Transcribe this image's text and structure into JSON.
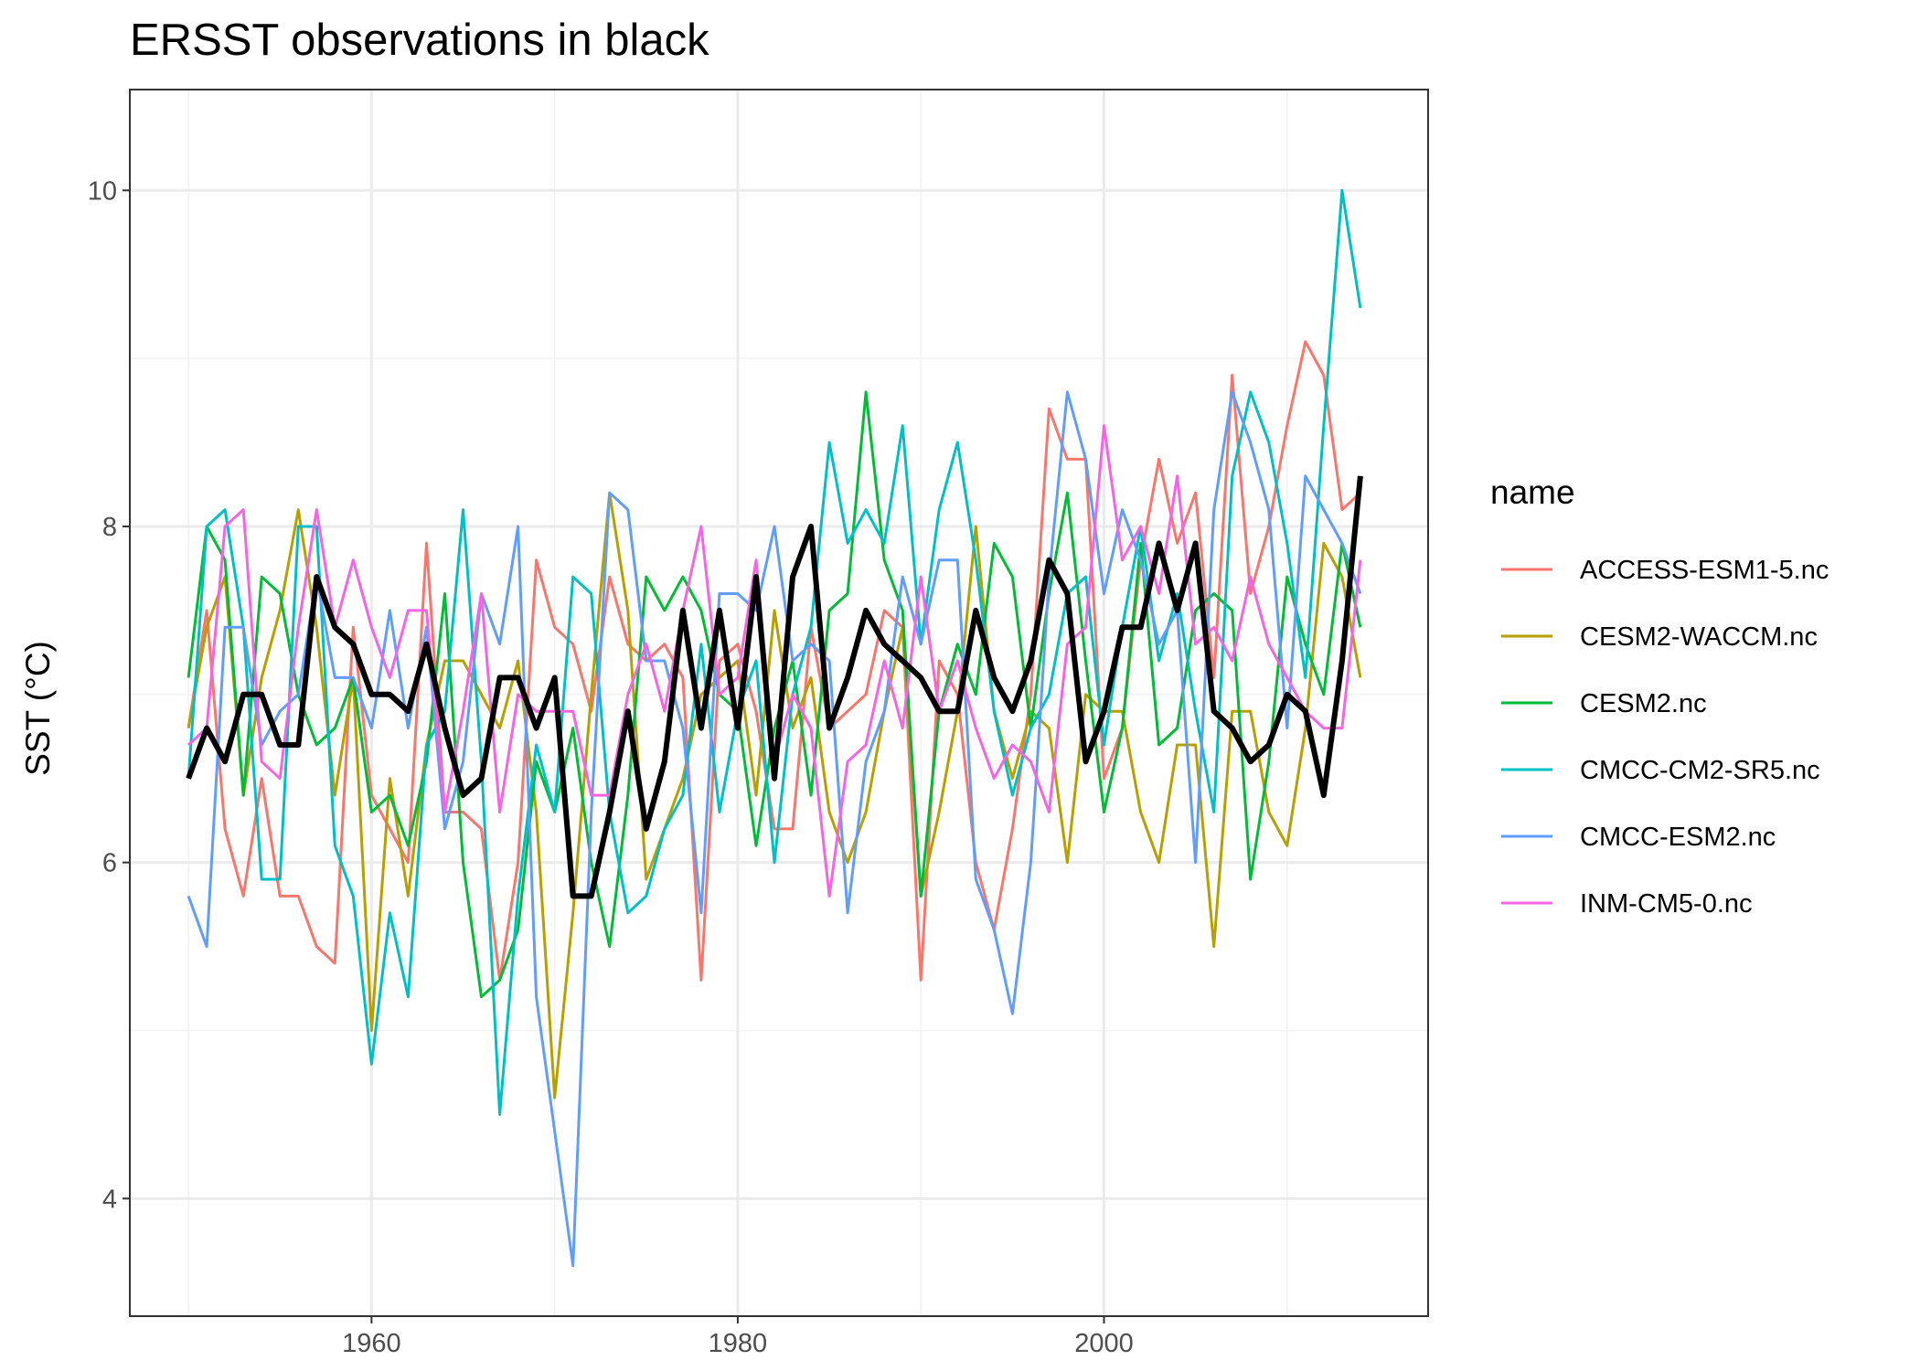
{
  "chart_data": {
    "type": "line",
    "title": "ERSST observations in black",
    "xlabel": "",
    "ylabel": "SST (°C)",
    "xlim": [
      1946.8,
      2017.7
    ],
    "ylim": [
      3.3,
      10.6
    ],
    "x_ticks": [
      1960,
      1980,
      2000
    ],
    "y_ticks": [
      4,
      6,
      8,
      10
    ],
    "grid": true,
    "legend": {
      "title": "name",
      "position": "right"
    },
    "x": [
      1950,
      1951,
      1952,
      1953,
      1954,
      1955,
      1956,
      1957,
      1958,
      1959,
      1960,
      1961,
      1962,
      1963,
      1964,
      1965,
      1966,
      1967,
      1968,
      1969,
      1970,
      1971,
      1972,
      1973,
      1974,
      1975,
      1976,
      1977,
      1978,
      1979,
      1980,
      1981,
      1982,
      1983,
      1984,
      1985,
      1986,
      1987,
      1988,
      1989,
      1990,
      1991,
      1992,
      1993,
      1994,
      1995,
      1996,
      1997,
      1998,
      1999,
      2000,
      2001,
      2002,
      2003,
      2004,
      2005,
      2006,
      2007,
      2008,
      2009,
      2010,
      2011,
      2012,
      2013,
      2014
    ],
    "series": [
      {
        "name": "ACCESS-ESM1-5.nc",
        "color": "#F8766D",
        "values": [
          6.8,
          7.5,
          6.2,
          5.8,
          6.5,
          5.8,
          5.8,
          5.5,
          5.4,
          7.4,
          6.4,
          6.2,
          6.0,
          7.9,
          6.3,
          6.3,
          6.2,
          5.3,
          6.0,
          7.8,
          7.4,
          7.3,
          6.9,
          7.7,
          7.3,
          7.2,
          7.3,
          7.1,
          5.3,
          7.2,
          7.3,
          6.9,
          6.2,
          6.2,
          7.4,
          6.8,
          6.9,
          7.0,
          7.5,
          7.4,
          5.3,
          7.2,
          7.0,
          6.0,
          5.6,
          6.2,
          7.0,
          8.7,
          8.4,
          8.4,
          6.5,
          6.8,
          7.8,
          8.4,
          7.9,
          8.2,
          7.1,
          8.9,
          7.6,
          8.0,
          8.6,
          9.1,
          8.9,
          8.1,
          8.2
        ]
      },
      {
        "name": "CESM2-WACCM.nc",
        "color": "#B79F00",
        "values": [
          6.8,
          7.4,
          7.7,
          6.4,
          7.1,
          7.5,
          8.1,
          7.4,
          6.4,
          7.1,
          5.0,
          6.5,
          5.8,
          6.7,
          7.2,
          7.2,
          7.0,
          6.8,
          7.2,
          6.3,
          4.6,
          5.7,
          7.0,
          8.2,
          7.5,
          5.9,
          6.2,
          6.5,
          7.0,
          7.1,
          7.2,
          6.4,
          7.5,
          6.8,
          7.1,
          6.3,
          6.0,
          6.3,
          6.9,
          7.4,
          5.8,
          6.3,
          6.9,
          8.0,
          6.9,
          6.5,
          6.9,
          6.8,
          6.0,
          7.0,
          6.9,
          6.9,
          6.3,
          6.0,
          6.7,
          6.7,
          5.5,
          6.9,
          6.9,
          6.3,
          6.1,
          6.8,
          7.9,
          7.7,
          7.1
        ]
      },
      {
        "name": "CESM2.nc",
        "color": "#00BA38",
        "values": [
          7.1,
          8.0,
          7.8,
          6.4,
          7.7,
          7.6,
          7.0,
          6.7,
          6.8,
          7.1,
          6.3,
          6.4,
          6.1,
          6.6,
          7.6,
          6.0,
          5.2,
          5.3,
          5.6,
          6.6,
          6.3,
          6.8,
          6.0,
          5.5,
          6.4,
          7.7,
          7.5,
          7.7,
          7.5,
          7.0,
          6.9,
          6.1,
          6.8,
          7.2,
          6.4,
          7.5,
          7.6,
          8.8,
          7.8,
          7.5,
          5.8,
          6.9,
          7.3,
          7.0,
          7.9,
          7.7,
          6.8,
          7.6,
          8.2,
          7.2,
          6.3,
          6.8,
          7.9,
          6.7,
          6.8,
          7.5,
          7.6,
          7.5,
          5.9,
          6.6,
          7.7,
          7.3,
          7.0,
          7.9,
          7.4
        ]
      },
      {
        "name": "CMCC-CM2-SR5.nc",
        "color": "#00BFC4",
        "values": [
          6.5,
          8.0,
          8.1,
          7.4,
          5.9,
          5.9,
          8.0,
          8.0,
          6.1,
          5.8,
          4.8,
          5.7,
          5.2,
          6.7,
          6.9,
          8.1,
          6.6,
          4.5,
          5.8,
          6.7,
          6.3,
          7.7,
          7.6,
          6.3,
          5.7,
          5.8,
          6.2,
          6.4,
          7.3,
          6.3,
          6.9,
          7.2,
          6.0,
          7.0,
          7.4,
          8.5,
          7.9,
          8.1,
          7.9,
          8.6,
          7.3,
          8.1,
          8.5,
          7.8,
          6.9,
          6.4,
          6.8,
          7.0,
          7.6,
          7.7,
          6.7,
          7.4,
          8.0,
          7.2,
          7.6,
          6.9,
          6.3,
          8.3,
          8.8,
          8.5,
          7.9,
          7.1,
          8.6,
          10.0,
          9.3
        ]
      },
      {
        "name": "CMCC-ESM2.nc",
        "color": "#619CFF",
        "values": [
          5.8,
          5.5,
          7.4,
          7.4,
          6.7,
          6.9,
          7.0,
          7.7,
          7.1,
          7.1,
          6.8,
          7.5,
          6.8,
          7.4,
          6.2,
          6.6,
          7.6,
          7.3,
          8.0,
          5.2,
          4.4,
          3.6,
          6.3,
          8.2,
          8.1,
          7.2,
          7.2,
          6.8,
          5.7,
          7.6,
          7.6,
          7.5,
          8.0,
          7.2,
          7.3,
          7.2,
          5.7,
          6.6,
          6.9,
          7.7,
          7.3,
          7.8,
          7.8,
          5.9,
          5.6,
          5.1,
          6.0,
          7.7,
          8.8,
          8.4,
          7.6,
          8.1,
          7.8,
          7.3,
          7.5,
          6.0,
          8.1,
          8.8,
          8.5,
          8.1,
          6.8,
          8.3,
          8.1,
          7.9,
          7.6
        ]
      },
      {
        "name": "INM-CM5-0.nc",
        "color": "#F564E3",
        "values": [
          6.7,
          6.8,
          8.0,
          8.1,
          6.6,
          6.5,
          7.4,
          8.1,
          7.4,
          7.8,
          7.4,
          7.1,
          7.5,
          7.5,
          6.3,
          6.9,
          7.6,
          6.3,
          7.0,
          6.9,
          6.9,
          6.9,
          6.4,
          6.4,
          7.0,
          7.3,
          6.9,
          7.5,
          8.0,
          7.0,
          7.1,
          7.8,
          6.6,
          7.0,
          6.8,
          5.8,
          6.6,
          6.7,
          7.2,
          6.8,
          7.7,
          6.9,
          7.2,
          6.8,
          6.5,
          6.7,
          6.6,
          6.3,
          7.3,
          7.4,
          8.6,
          7.8,
          8.0,
          7.6,
          8.3,
          7.3,
          7.4,
          7.2,
          7.7,
          7.3,
          7.1,
          6.9,
          6.8,
          6.8,
          7.8
        ]
      },
      {
        "name": "ERSST",
        "color": "#000000",
        "values": [
          6.5,
          6.8,
          6.6,
          7.0,
          7.0,
          6.7,
          6.7,
          7.7,
          7.4,
          7.3,
          7.0,
          7.0,
          6.9,
          7.3,
          6.8,
          6.4,
          6.5,
          7.1,
          7.1,
          6.8,
          7.1,
          5.8,
          5.8,
          6.3,
          6.9,
          6.2,
          6.6,
          7.5,
          6.8,
          7.5,
          6.8,
          7.7,
          6.5,
          7.7,
          8.0,
          6.8,
          7.1,
          7.5,
          7.3,
          7.2,
          7.1,
          6.9,
          6.9,
          7.5,
          7.1,
          6.9,
          7.2,
          7.8,
          7.6,
          6.6,
          6.9,
          7.4,
          7.4,
          7.9,
          7.5,
          7.9,
          6.9,
          6.8,
          6.6,
          6.7,
          7.0,
          6.9,
          6.4,
          7.2,
          8.3
        ]
      }
    ]
  }
}
